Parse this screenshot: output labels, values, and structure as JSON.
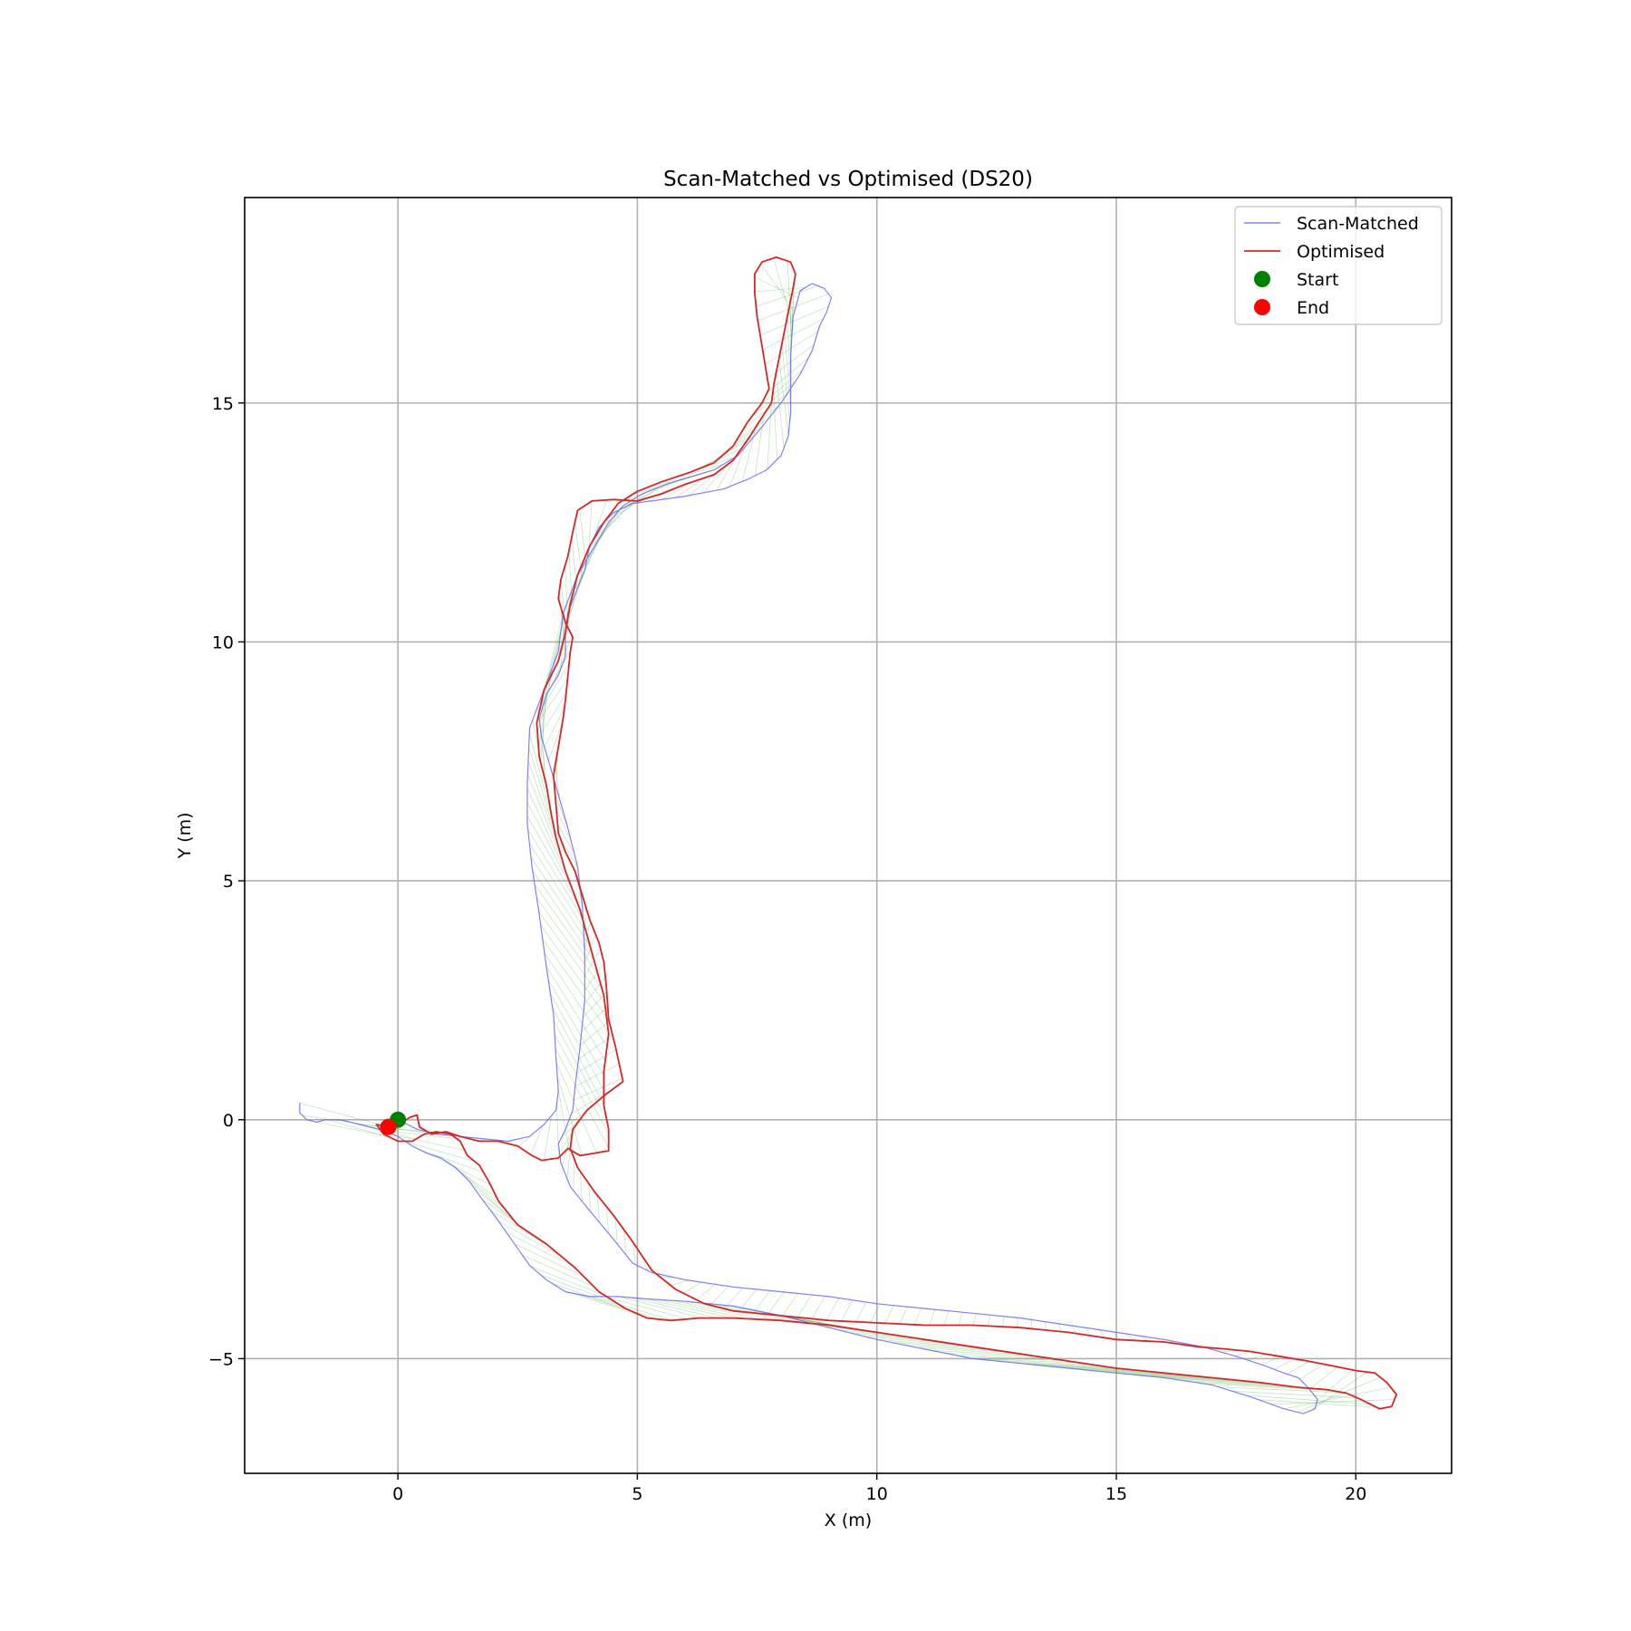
{
  "chart_data": {
    "type": "line",
    "title": "Scan-Matched vs Optimised (DS20)",
    "xlabel": "X (m)",
    "ylabel": "Y (m)",
    "xlim": [
      -3.2,
      22.0
    ],
    "ylim": [
      -7.4,
      19.3
    ],
    "xticks": [
      0,
      5,
      10,
      15,
      20
    ],
    "yticks": [
      -5,
      0,
      5,
      10,
      15
    ],
    "xtick_labels": [
      "0",
      "5",
      "10",
      "15",
      "20"
    ],
    "ytick_labels": [
      "−5",
      "0",
      "5",
      "10",
      "15"
    ],
    "grid": true,
    "legend": "top-right",
    "series": [
      {
        "name": "Scan-Matched",
        "color": "#6b6bf5",
        "points": [
          [
            -2.05,
            0.35
          ],
          [
            -2.05,
            0.15
          ],
          [
            -1.9,
            0.0
          ],
          [
            -1.7,
            -0.05
          ],
          [
            -1.5,
            0.0
          ],
          [
            -1.2,
            0.0
          ],
          [
            -0.8,
            -0.1
          ],
          [
            -0.4,
            -0.2
          ],
          [
            0.0,
            -0.35
          ],
          [
            0.3,
            -0.55
          ],
          [
            0.6,
            -0.7
          ],
          [
            0.9,
            -0.8
          ],
          [
            1.2,
            -1.0
          ],
          [
            1.5,
            -1.3
          ],
          [
            1.75,
            -1.65
          ],
          [
            2.05,
            -2.05
          ],
          [
            2.4,
            -2.55
          ],
          [
            2.75,
            -3.05
          ],
          [
            3.1,
            -3.35
          ],
          [
            3.5,
            -3.6
          ],
          [
            4.0,
            -3.7
          ],
          [
            4.6,
            -3.7
          ],
          [
            5.2,
            -3.75
          ],
          [
            6.0,
            -3.8
          ],
          [
            7.0,
            -3.9
          ],
          [
            8.0,
            -4.1
          ],
          [
            9.0,
            -4.35
          ],
          [
            10.0,
            -4.6
          ],
          [
            11.0,
            -4.8
          ],
          [
            12.0,
            -5.0
          ],
          [
            13.0,
            -5.1
          ],
          [
            14.0,
            -5.2
          ],
          [
            15.0,
            -5.3
          ],
          [
            16.0,
            -5.4
          ],
          [
            17.0,
            -5.55
          ],
          [
            17.8,
            -5.8
          ],
          [
            18.5,
            -6.05
          ],
          [
            18.9,
            -6.15
          ],
          [
            19.15,
            -6.05
          ],
          [
            19.2,
            -5.85
          ],
          [
            19.0,
            -5.6
          ],
          [
            18.8,
            -5.4
          ],
          [
            18.5,
            -5.3
          ],
          [
            18.1,
            -5.15
          ],
          [
            17.5,
            -4.95
          ],
          [
            16.8,
            -4.75
          ],
          [
            16.0,
            -4.6
          ],
          [
            15.0,
            -4.45
          ],
          [
            14.0,
            -4.3
          ],
          [
            13.0,
            -4.15
          ],
          [
            12.0,
            -4.05
          ],
          [
            11.0,
            -3.95
          ],
          [
            10.0,
            -3.85
          ],
          [
            9.0,
            -3.7
          ],
          [
            8.0,
            -3.6
          ],
          [
            7.0,
            -3.5
          ],
          [
            6.0,
            -3.35
          ],
          [
            5.3,
            -3.2
          ],
          [
            4.9,
            -3.0
          ],
          [
            4.5,
            -2.5
          ],
          [
            4.0,
            -1.9
          ],
          [
            3.6,
            -1.4
          ],
          [
            3.4,
            -0.9
          ],
          [
            3.35,
            -0.5
          ],
          [
            3.5,
            -0.2
          ],
          [
            3.65,
            0.2
          ],
          [
            3.7,
            0.7
          ],
          [
            3.8,
            1.5
          ],
          [
            3.9,
            2.5
          ],
          [
            3.9,
            3.5
          ],
          [
            3.85,
            4.5
          ],
          [
            3.75,
            5.3
          ],
          [
            3.55,
            6.1
          ],
          [
            3.35,
            6.8
          ],
          [
            3.15,
            7.5
          ],
          [
            3.0,
            8.0
          ],
          [
            2.95,
            8.4
          ],
          [
            3.1,
            8.9
          ],
          [
            3.35,
            9.3
          ],
          [
            3.5,
            9.7
          ],
          [
            3.5,
            10.2
          ],
          [
            3.55,
            10.6
          ],
          [
            3.7,
            11.0
          ],
          [
            3.9,
            11.5
          ],
          [
            4.0,
            12.0
          ],
          [
            4.2,
            12.4
          ],
          [
            4.5,
            12.7
          ],
          [
            4.9,
            12.9
          ],
          [
            5.3,
            12.95
          ],
          [
            6.0,
            13.05
          ],
          [
            6.8,
            13.2
          ],
          [
            7.3,
            13.4
          ],
          [
            7.7,
            13.6
          ],
          [
            8.0,
            13.9
          ],
          [
            8.15,
            14.3
          ],
          [
            8.2,
            14.8
          ],
          [
            8.2,
            15.3
          ],
          [
            8.2,
            16.0
          ],
          [
            8.25,
            16.8
          ],
          [
            8.4,
            17.35
          ],
          [
            8.65,
            17.5
          ],
          [
            8.9,
            17.4
          ],
          [
            9.05,
            17.2
          ],
          [
            8.95,
            16.9
          ],
          [
            8.8,
            16.6
          ],
          [
            8.65,
            16.1
          ],
          [
            8.4,
            15.6
          ],
          [
            8.0,
            15.0
          ],
          [
            7.6,
            14.5
          ],
          [
            7.1,
            13.9
          ],
          [
            6.6,
            13.6
          ],
          [
            6.1,
            13.45
          ],
          [
            5.6,
            13.3
          ],
          [
            5.1,
            13.1
          ],
          [
            4.7,
            12.85
          ],
          [
            4.4,
            12.5
          ],
          [
            4.1,
            12.0
          ],
          [
            3.75,
            11.4
          ],
          [
            3.45,
            10.6
          ],
          [
            3.35,
            9.8
          ],
          [
            3.05,
            9.0
          ],
          [
            2.75,
            8.2
          ],
          [
            2.7,
            7.0
          ],
          [
            2.7,
            6.2
          ],
          [
            2.8,
            5.3
          ],
          [
            2.95,
            4.3
          ],
          [
            3.1,
            3.2
          ],
          [
            3.25,
            2.2
          ],
          [
            3.3,
            1.3
          ],
          [
            3.35,
            0.6
          ],
          [
            3.3,
            0.2
          ],
          [
            3.05,
            -0.1
          ],
          [
            2.75,
            -0.35
          ],
          [
            2.3,
            -0.45
          ],
          [
            1.8,
            -0.4
          ],
          [
            1.3,
            -0.35
          ],
          [
            0.8,
            -0.3
          ],
          [
            0.4,
            -0.2
          ],
          [
            0.1,
            -0.05
          ],
          [
            0.0,
            0.0
          ]
        ]
      },
      {
        "name": "Optimised",
        "color": "#d62728",
        "points": [
          [
            -0.2,
            -0.15
          ],
          [
            -0.45,
            -0.1
          ],
          [
            -0.3,
            -0.3
          ],
          [
            0.0,
            -0.45
          ],
          [
            0.3,
            -0.45
          ],
          [
            0.55,
            -0.3
          ],
          [
            0.8,
            -0.25
          ],
          [
            1.1,
            -0.3
          ],
          [
            1.3,
            -0.45
          ],
          [
            1.45,
            -0.75
          ],
          [
            1.7,
            -0.95
          ],
          [
            1.9,
            -1.3
          ],
          [
            2.1,
            -1.7
          ],
          [
            2.5,
            -2.2
          ],
          [
            3.1,
            -2.6
          ],
          [
            3.7,
            -3.1
          ],
          [
            4.2,
            -3.6
          ],
          [
            4.75,
            -3.95
          ],
          [
            5.2,
            -4.15
          ],
          [
            5.7,
            -4.2
          ],
          [
            6.3,
            -4.15
          ],
          [
            7.0,
            -4.15
          ],
          [
            8.0,
            -4.2
          ],
          [
            9.0,
            -4.3
          ],
          [
            10.0,
            -4.45
          ],
          [
            11.0,
            -4.6
          ],
          [
            12.0,
            -4.75
          ],
          [
            13.0,
            -4.9
          ],
          [
            14.0,
            -5.05
          ],
          [
            15.0,
            -5.2
          ],
          [
            16.0,
            -5.3
          ],
          [
            17.0,
            -5.4
          ],
          [
            18.0,
            -5.5
          ],
          [
            18.8,
            -5.6
          ],
          [
            19.4,
            -5.65
          ],
          [
            19.8,
            -5.72
          ],
          [
            20.1,
            -5.85
          ],
          [
            20.5,
            -6.05
          ],
          [
            20.75,
            -6.0
          ],
          [
            20.85,
            -5.75
          ],
          [
            20.65,
            -5.5
          ],
          [
            20.4,
            -5.3
          ],
          [
            20.0,
            -5.25
          ],
          [
            19.5,
            -5.15
          ],
          [
            19.0,
            -5.05
          ],
          [
            18.4,
            -4.95
          ],
          [
            17.8,
            -4.85
          ],
          [
            17.3,
            -4.8
          ],
          [
            16.7,
            -4.75
          ],
          [
            16.0,
            -4.65
          ],
          [
            15.0,
            -4.6
          ],
          [
            14.0,
            -4.45
          ],
          [
            13.0,
            -4.35
          ],
          [
            12.0,
            -4.3
          ],
          [
            11.0,
            -4.3
          ],
          [
            10.0,
            -4.25
          ],
          [
            9.0,
            -4.2
          ],
          [
            8.0,
            -4.1
          ],
          [
            7.0,
            -4.0
          ],
          [
            6.4,
            -3.85
          ],
          [
            5.8,
            -3.55
          ],
          [
            5.3,
            -3.15
          ],
          [
            4.9,
            -2.55
          ],
          [
            4.5,
            -2.0
          ],
          [
            4.1,
            -1.5
          ],
          [
            3.75,
            -1.0
          ],
          [
            3.6,
            -0.6
          ],
          [
            3.65,
            -0.2
          ],
          [
            3.95,
            0.2
          ],
          [
            4.3,
            0.5
          ],
          [
            4.7,
            0.8
          ],
          [
            4.55,
            1.5
          ],
          [
            4.4,
            2.1
          ],
          [
            4.35,
            2.8
          ],
          [
            4.3,
            3.3
          ],
          [
            4.2,
            3.7
          ],
          [
            4.0,
            4.2
          ],
          [
            3.85,
            4.7
          ],
          [
            3.7,
            5.2
          ],
          [
            3.5,
            5.6
          ],
          [
            3.35,
            6.0
          ],
          [
            3.3,
            6.6
          ],
          [
            3.25,
            7.2
          ],
          [
            3.35,
            7.8
          ],
          [
            3.45,
            8.4
          ],
          [
            3.5,
            8.8
          ],
          [
            3.55,
            9.3
          ],
          [
            3.6,
            9.8
          ],
          [
            3.65,
            10.1
          ],
          [
            3.5,
            10.4
          ],
          [
            3.35,
            10.9
          ],
          [
            3.4,
            11.3
          ],
          [
            3.55,
            11.8
          ],
          [
            3.65,
            12.3
          ],
          [
            3.75,
            12.75
          ],
          [
            4.05,
            12.95
          ],
          [
            4.5,
            12.98
          ],
          [
            5.0,
            12.95
          ],
          [
            5.5,
            13.1
          ],
          [
            6.0,
            13.3
          ],
          [
            6.6,
            13.5
          ],
          [
            7.0,
            13.8
          ],
          [
            7.35,
            14.3
          ],
          [
            7.6,
            14.7
          ],
          [
            7.8,
            15.0
          ],
          [
            7.85,
            15.4
          ],
          [
            7.95,
            15.9
          ],
          [
            8.05,
            16.4
          ],
          [
            8.15,
            16.9
          ],
          [
            8.25,
            17.4
          ],
          [
            8.3,
            17.7
          ],
          [
            8.2,
            17.95
          ],
          [
            7.9,
            18.05
          ],
          [
            7.6,
            17.95
          ],
          [
            7.45,
            17.7
          ],
          [
            7.45,
            17.3
          ],
          [
            7.5,
            16.8
          ],
          [
            7.6,
            16.2
          ],
          [
            7.7,
            15.6
          ],
          [
            7.75,
            15.3
          ],
          [
            7.6,
            15.0
          ],
          [
            7.3,
            14.6
          ],
          [
            7.0,
            14.1
          ],
          [
            6.6,
            13.75
          ],
          [
            6.1,
            13.55
          ],
          [
            5.5,
            13.35
          ],
          [
            5.0,
            13.15
          ],
          [
            4.6,
            12.9
          ],
          [
            4.3,
            12.5
          ],
          [
            4.0,
            12.0
          ],
          [
            3.75,
            11.4
          ],
          [
            3.6,
            10.8
          ],
          [
            3.5,
            10.2
          ],
          [
            3.35,
            9.6
          ],
          [
            3.05,
            9.0
          ],
          [
            2.9,
            8.3
          ],
          [
            2.95,
            7.6
          ],
          [
            3.1,
            7.0
          ],
          [
            3.2,
            6.4
          ],
          [
            3.3,
            5.9
          ],
          [
            3.5,
            5.2
          ],
          [
            3.8,
            4.4
          ],
          [
            4.05,
            3.5
          ],
          [
            4.3,
            2.6
          ],
          [
            4.4,
            1.8
          ],
          [
            4.3,
            1.0
          ],
          [
            4.3,
            0.3
          ],
          [
            4.4,
            -0.2
          ],
          [
            4.4,
            -0.65
          ],
          [
            4.1,
            -0.7
          ],
          [
            3.8,
            -0.75
          ],
          [
            3.55,
            -0.6
          ],
          [
            3.35,
            -0.8
          ],
          [
            3.0,
            -0.85
          ],
          [
            2.8,
            -0.75
          ],
          [
            2.5,
            -0.55
          ],
          [
            2.1,
            -0.45
          ],
          [
            1.7,
            -0.45
          ],
          [
            1.3,
            -0.35
          ],
          [
            1.0,
            -0.25
          ],
          [
            0.7,
            -0.3
          ],
          [
            0.45,
            -0.15
          ],
          [
            0.4,
            0.1
          ],
          [
            0.25,
            0.05
          ],
          [
            0.1,
            -0.05
          ],
          [
            -0.2,
            -0.15
          ]
        ]
      },
      {
        "name": "Start",
        "color": "#008000",
        "points": [
          [
            0.0,
            0.0
          ]
        ]
      },
      {
        "name": "End",
        "color": "#ff0000",
        "points": [
          [
            -0.2,
            -0.15
          ]
        ]
      }
    ],
    "correspondence_color": "#2ca02c"
  }
}
